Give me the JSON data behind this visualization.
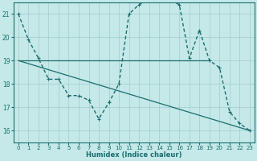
{
  "xlabel": "Humidex (Indice chaleur)",
  "xlim": [
    -0.5,
    23.5
  ],
  "ylim": [
    15.5,
    21.5
  ],
  "yticks": [
    16,
    17,
    18,
    19,
    20,
    21
  ],
  "xticks": [
    0,
    1,
    2,
    3,
    4,
    5,
    6,
    7,
    8,
    9,
    10,
    11,
    12,
    13,
    14,
    15,
    16,
    17,
    18,
    19,
    20,
    21,
    22,
    23
  ],
  "background_color": "#c5e8e8",
  "grid_color": "#a0cccc",
  "line_color": "#1a6e6e",
  "line1": {
    "x": [
      0,
      1,
      2,
      3,
      4,
      5,
      6,
      7,
      8,
      9,
      10,
      11,
      12,
      13,
      14,
      15,
      16,
      17,
      18,
      19,
      20,
      21,
      22,
      23
    ],
    "y": [
      21.0,
      19.9,
      19.1,
      18.2,
      18.2,
      17.5,
      17.5,
      17.3,
      16.5,
      17.2,
      18.0,
      21.0,
      21.4,
      21.6,
      21.6,
      21.6,
      21.4,
      19.1,
      20.3,
      19.0,
      18.7,
      16.8,
      16.3,
      16.0
    ]
  },
  "line2": {
    "x": [
      0,
      3,
      10,
      19
    ],
    "y": [
      19.0,
      19.0,
      19.0,
      19.0
    ]
  },
  "line3": {
    "x": [
      0,
      23
    ],
    "y": [
      19.0,
      16.0
    ]
  }
}
